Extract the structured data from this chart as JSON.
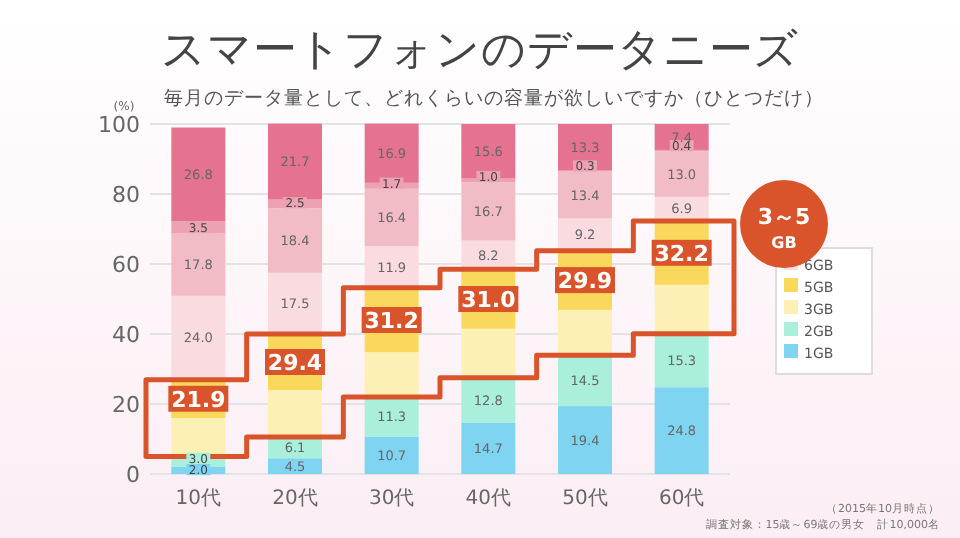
{
  "chart_data": {
    "type": "bar",
    "stacked": true,
    "title": "スマートフォンのデータニーズ",
    "subtitle": "毎月のデータ量として、どれくらいの容量が欲しいですか（ひとつだけ）",
    "ylabel": "(%)",
    "categories": [
      "10代",
      "20代",
      "30代",
      "40代",
      "50代",
      "60代"
    ],
    "series": [
      {
        "name": "1GB",
        "color": "#7fd4f2",
        "values": [
          2.0,
          4.5,
          10.7,
          14.7,
          19.4,
          24.8
        ],
        "value_labels": [
          "2.0",
          "4.5",
          "10.7",
          "14.7",
          "19.4",
          "24.8"
        ]
      },
      {
        "name": "2GB",
        "color": "#a9efdc",
        "values": [
          3.0,
          6.1,
          11.3,
          12.8,
          14.5,
          15.3
        ],
        "value_labels": [
          "3.0",
          "6.1",
          "11.3",
          "12.8",
          "14.5",
          "15.3"
        ]
      },
      {
        "name": "3GB",
        "color": "#fcf0b4",
        "values": [
          11.0,
          13.4,
          12.8,
          14.0,
          13.0,
          14.0
        ]
      },
      {
        "name": "5GB",
        "color": "#f9d85c",
        "values": [
          10.9,
          16.0,
          18.4,
          17.0,
          16.9,
          18.2
        ]
      },
      {
        "name": "6GB",
        "color": "#f9dbe0",
        "values": [
          24.0,
          17.5,
          11.9,
          8.2,
          9.2,
          6.9
        ],
        "value_labels": [
          "24.0",
          "17.5",
          "11.9",
          "8.2",
          "9.2",
          "6.9"
        ]
      },
      {
        "color": "#f2bcc6",
        "values": [
          17.8,
          18.4,
          16.4,
          16.7,
          13.4,
          13.0
        ],
        "value_labels": [
          "17.8",
          "18.4",
          "16.4",
          "16.7",
          "13.4",
          "13.0"
        ]
      },
      {
        "color": "#eda2b3",
        "values": [
          3.5,
          2.5,
          1.7,
          1.0,
          0.3,
          0.4
        ],
        "value_labels": [
          "3.5",
          "2.5",
          "1.7",
          "1.0",
          "0.3",
          "0.4"
        ]
      },
      {
        "color": "#e5728f",
        "values": [
          26.8,
          21.7,
          16.9,
          15.6,
          13.3,
          7.4
        ],
        "value_labels": [
          "26.8",
          "21.7",
          "16.9",
          "15.6",
          "13.3",
          "7.4"
        ]
      }
    ],
    "ylim": [
      0,
      100
    ],
    "yticks": [
      0,
      20,
      40,
      60,
      80,
      100
    ],
    "grid": "y",
    "legend": "right",
    "annotations": [
      {
        "text": "21.9",
        "x": "10代",
        "y": 21.5
      },
      {
        "text": "29.4",
        "x": "20代",
        "y": 32.0
      },
      {
        "text": "31.2",
        "x": "30代",
        "y": 44.0
      },
      {
        "text": "31.0",
        "x": "40代",
        "y": 50.0
      },
      {
        "text": "29.9",
        "x": "50代",
        "y": 55.4
      },
      {
        "text": "32.2",
        "x": "60代",
        "y": 63.2
      },
      "3～5 GB",
      "（2015年10月時点）",
      "調査対象：15歳～69歳の男女　計10,000名"
    ]
  }
}
